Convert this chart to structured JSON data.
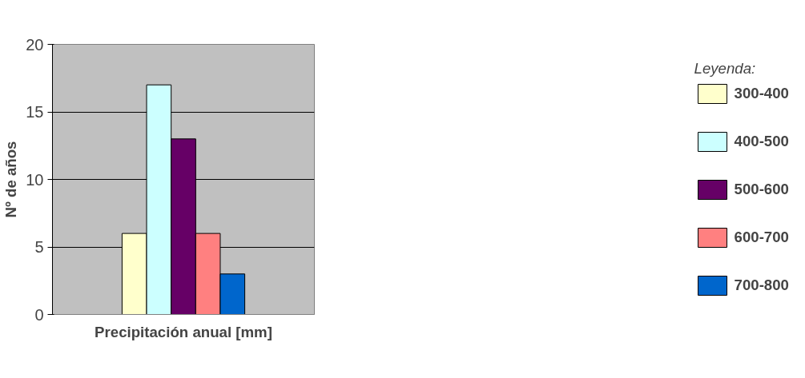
{
  "chart_data": {
    "type": "bar",
    "xlabel": "Precipitación anual [mm]",
    "ylabel": "Nº de años",
    "legend_title": "Leyenda:",
    "categories": [
      null
    ],
    "series": [
      {
        "name": "300-400",
        "color": "#ffffcc",
        "values": [
          6
        ]
      },
      {
        "name": "400-500",
        "color": "#ccffff",
        "values": [
          17
        ]
      },
      {
        "name": "500-600",
        "color": "#660066",
        "values": [
          13
        ]
      },
      {
        "name": "600-700",
        "color": "#ff8080",
        "values": [
          6
        ]
      },
      {
        "name": "700-800",
        "color": "#0066cc",
        "values": [
          3
        ]
      }
    ],
    "ylim": [
      0,
      20
    ],
    "yticks": [
      0,
      5,
      10,
      15,
      20
    ],
    "grid": "y",
    "legend": "right"
  }
}
